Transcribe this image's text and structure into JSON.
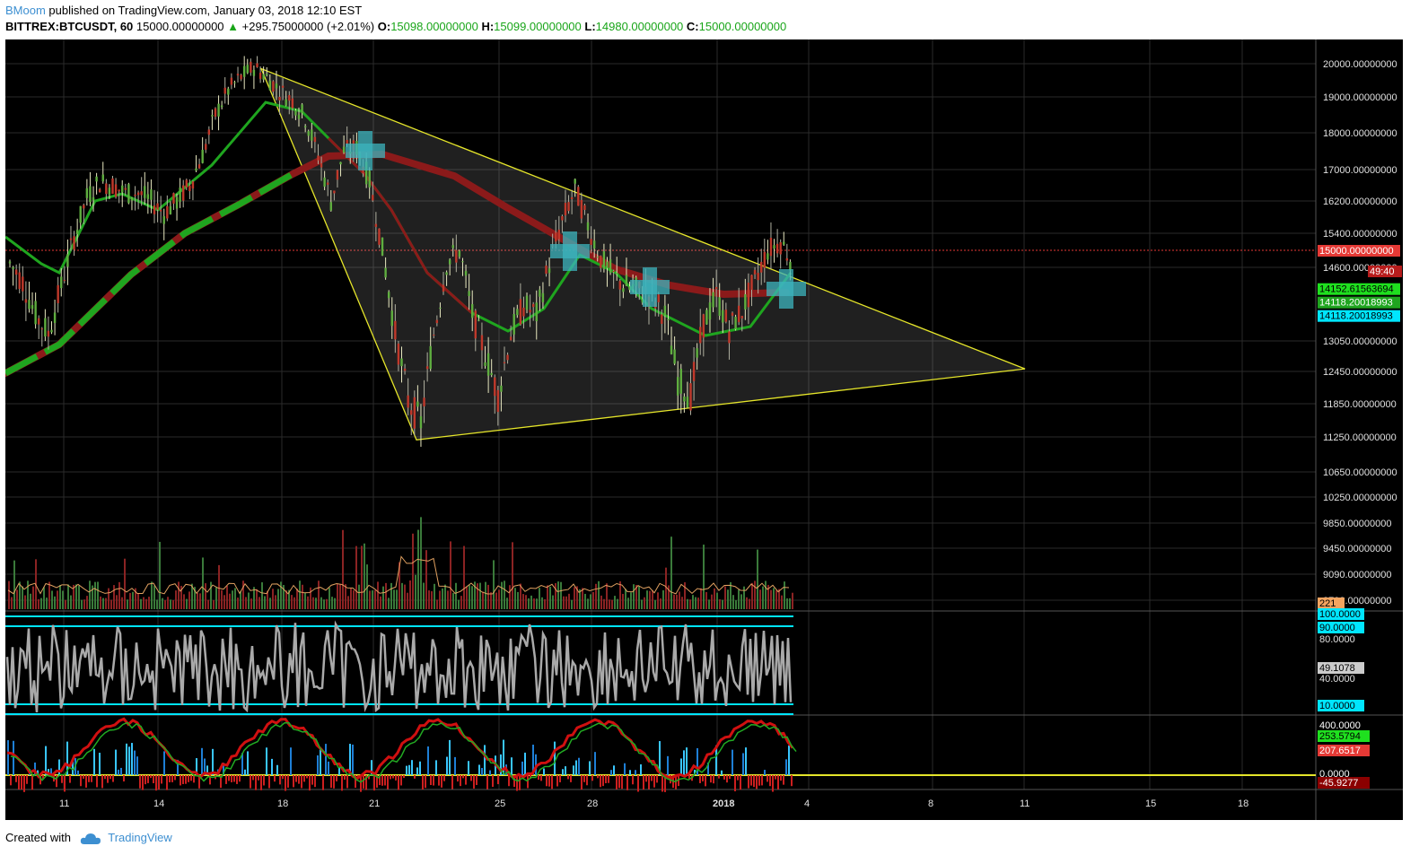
{
  "header": {
    "author": "BMoom",
    "published": "published on TradingView.com, January 03, 2018 12:10 EST",
    "symbol": "BITTREX:BTCUSDT, 60",
    "last": "15000.00000000",
    "change": "+295.75000000 (+2.01%)",
    "o_label": "O:",
    "o_value": "15098.00000000",
    "h_label": "H:",
    "h_value": "15099.00000000",
    "l_label": "L:",
    "l_value": "14980.00000000",
    "c_label": "C:",
    "c_value": "15000.00000000"
  },
  "footer": {
    "created_with": "Created with",
    "brand": "TradingView"
  },
  "colors": {
    "background": "#000000",
    "grid": "#2a2a2a",
    "triangle": "#e5e52a",
    "up": "#26a69a",
    "price_line": "#e53935",
    "ma_green": "#1fa51f",
    "ma_red": "#8b1a1a",
    "cyan": "#00e5ff"
  },
  "chart_data": {
    "type": "candlestick",
    "symbol": "BITTREX:BTCUSDT",
    "interval": "60",
    "y_axis_ticks": [
      "20000.00000000",
      "19000.00000000",
      "18000.00000000",
      "17000.00000000",
      "16200.00000000",
      "15400.00000000",
      "14600.00000000",
      "13050.00000000",
      "12450.00000000",
      "11850.00000000",
      "11250.00000000",
      "10650.00000000",
      "10250.00000000",
      "9850.00000000",
      "9450.00000000",
      "9090.00000000",
      "8700.00000000"
    ],
    "x_axis_ticks": [
      "11",
      "14",
      "18",
      "21",
      "25",
      "28",
      "2018",
      "4",
      "8",
      "11",
      "15",
      "18"
    ],
    "price_labels": {
      "current": "15000.00000000",
      "countdown": "49:40",
      "ma_green": "14152.61563694",
      "ma_a": "14118.20018993",
      "ma_b": "14118.20018993",
      "volume": "221"
    },
    "close_series": [
      14700,
      14300,
      13600,
      13200,
      14200,
      15300,
      16300,
      16700,
      16600,
      16400,
      16400,
      16200,
      15900,
      16200,
      16600,
      17400,
      18500,
      19200,
      19600,
      19900,
      19600,
      19200,
      18900,
      18400,
      17400,
      16200,
      17500,
      17600,
      16700,
      15000,
      13200,
      11900,
      11500,
      13200,
      14700,
      15000,
      13600,
      12800,
      12000,
      13200,
      13800,
      13600,
      14700,
      15700,
      16500,
      15600,
      14800,
      14400,
      14200,
      14100,
      14000,
      13600,
      12300,
      12000,
      13400,
      14000,
      13300,
      13700,
      14300,
      15000,
      15200,
      14700
    ],
    "triangle": {
      "apex_top_price": 19850,
      "apex_left_low_price": 11200,
      "right_vertex_price": 12500
    },
    "stoch_rsi": {
      "value": "49.1078",
      "levels": [
        "100.0000",
        "90.0000",
        "80.0000",
        "40.0000",
        "10.0000"
      ]
    },
    "oscillator": {
      "labels": [
        "400.0000",
        "253.5794",
        "207.6517",
        "0.0000",
        "-45.9277"
      ]
    }
  }
}
